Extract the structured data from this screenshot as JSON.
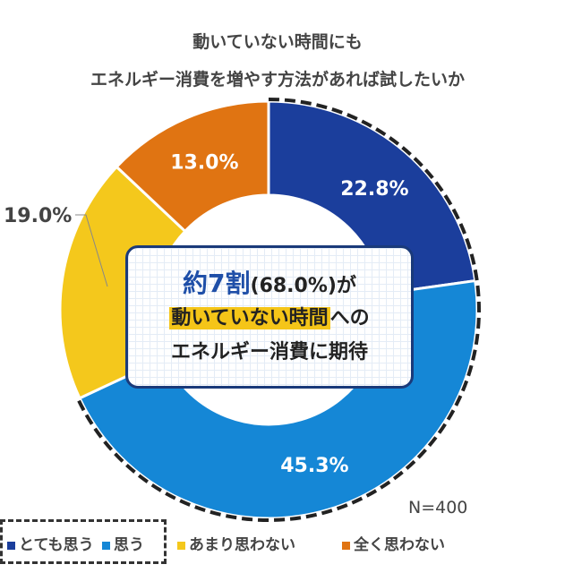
{
  "chart_data": {
    "type": "pie",
    "title": [
      "動いていない時間にも",
      "エネルギー消費を増やす方法があれば試したいか"
    ],
    "categories": [
      "とても思う",
      "思う",
      "あまり思わない",
      "全く思わない"
    ],
    "values": [
      22.8,
      45.3,
      19.0,
      13.0
    ],
    "labels": [
      "22.8%",
      "45.3%",
      "19.0%",
      "13.0%"
    ],
    "colors": [
      "#1b3e9c",
      "#1587d6",
      "#f4c81c",
      "#e07412"
    ],
    "donut": true,
    "legend": "bottom",
    "note": "N=400"
  },
  "callout": {
    "big": "約7割",
    "pct": "(68.0%)が",
    "highlight": "動いていない時間",
    "after": "への",
    "line3": "エネルギー消費に期待"
  }
}
